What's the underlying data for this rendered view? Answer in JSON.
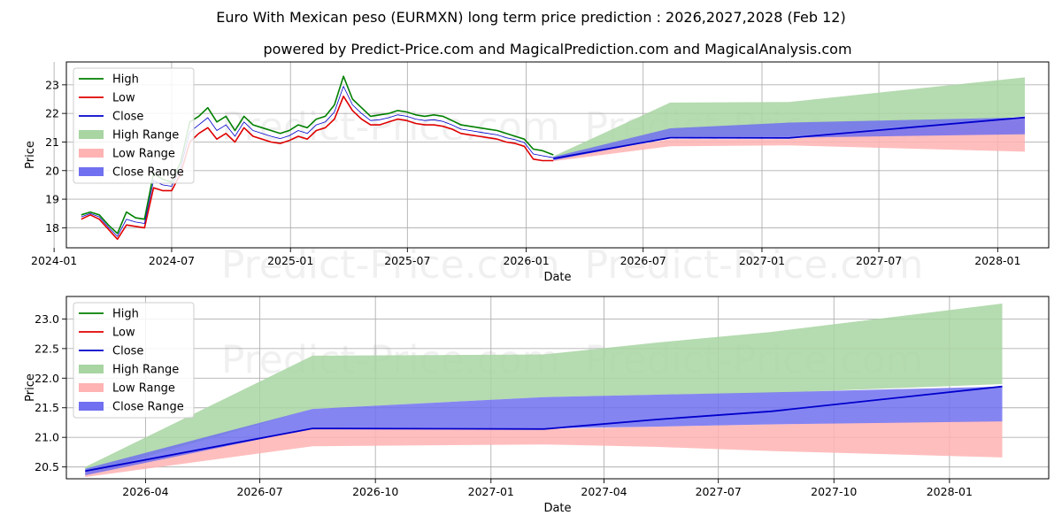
{
  "title": "Euro With Mexican peso (EURMXN) long term price prediction : 2026,2027,2028 (Feb 12)",
  "subtitle": "powered by Predict-Price.com and MagicalPrediction.com and MagicalAnalysis.com",
  "watermark": "Predict-Price.com",
  "colors": {
    "high": "#008000",
    "low": "#e00000",
    "close": "#0000cc",
    "high_range": "#a8d5a2",
    "low_range": "#ffb3b3",
    "close_range": "#7070f0",
    "grid": "#b0b0b0"
  },
  "legend": {
    "high": "High",
    "low": "Low",
    "close": "Close",
    "high_range": "High Range",
    "low_range": "Low Range",
    "close_range": "Close Range"
  },
  "chart_data": [
    {
      "type": "line",
      "name": "full-history",
      "xlabel": "Date",
      "ylabel": "Price",
      "xlim": [
        "2024-01-20",
        "2028-03-20"
      ],
      "ylim": [
        17.3,
        23.8
      ],
      "x_ticks": [
        "2024-01",
        "2024-07",
        "2025-01",
        "2025-07",
        "2026-01",
        "2026-07",
        "2027-01",
        "2027-07",
        "2028-01"
      ],
      "y_ticks": [
        18,
        19,
        20,
        21,
        22,
        23
      ],
      "history": {
        "dates": [
          "2024-02-12",
          "2024-02-26",
          "2024-03-11",
          "2024-03-25",
          "2024-04-08",
          "2024-04-22",
          "2024-05-06",
          "2024-05-20",
          "2024-06-03",
          "2024-06-17",
          "2024-07-01",
          "2024-07-15",
          "2024-07-29",
          "2024-08-12",
          "2024-08-26",
          "2024-09-09",
          "2024-09-23",
          "2024-10-07",
          "2024-10-21",
          "2024-11-04",
          "2024-11-18",
          "2024-12-02",
          "2024-12-16",
          "2024-12-30",
          "2025-01-13",
          "2025-01-27",
          "2025-02-10",
          "2025-02-24",
          "2025-03-10",
          "2025-03-24",
          "2025-04-07",
          "2025-04-21",
          "2025-05-05",
          "2025-05-19",
          "2025-06-02",
          "2025-06-16",
          "2025-06-30",
          "2025-07-14",
          "2025-07-28",
          "2025-08-11",
          "2025-08-25",
          "2025-09-08",
          "2025-09-22",
          "2025-10-06",
          "2025-10-20",
          "2025-11-03",
          "2025-11-17",
          "2025-12-01",
          "2025-12-15",
          "2025-12-29",
          "2026-01-12",
          "2026-01-26",
          "2026-02-12"
        ],
        "high": [
          18.45,
          18.55,
          18.45,
          18.1,
          17.8,
          18.55,
          18.35,
          18.3,
          19.9,
          19.7,
          19.6,
          20.3,
          21.7,
          21.9,
          22.2,
          21.7,
          21.9,
          21.4,
          21.9,
          21.6,
          21.5,
          21.4,
          21.3,
          21.4,
          21.6,
          21.5,
          21.8,
          21.9,
          22.3,
          23.3,
          22.5,
          22.2,
          21.9,
          21.95,
          22.0,
          22.1,
          22.05,
          21.95,
          21.9,
          21.95,
          21.9,
          21.75,
          21.6,
          21.55,
          21.5,
          21.45,
          21.4,
          21.3,
          21.2,
          21.1,
          20.75,
          20.7,
          20.55
        ],
        "low": [
          18.3,
          18.45,
          18.3,
          17.95,
          17.6,
          18.1,
          18.05,
          18.0,
          19.4,
          19.3,
          19.3,
          19.9,
          21.0,
          21.3,
          21.5,
          21.1,
          21.3,
          21.0,
          21.5,
          21.2,
          21.1,
          21.0,
          20.95,
          21.05,
          21.2,
          21.1,
          21.4,
          21.5,
          21.8,
          22.6,
          22.1,
          21.8,
          21.6,
          21.6,
          21.7,
          21.8,
          21.75,
          21.65,
          21.6,
          21.6,
          21.55,
          21.45,
          21.3,
          21.25,
          21.2,
          21.15,
          21.1,
          21.0,
          20.95,
          20.85,
          20.4,
          20.35,
          20.35
        ],
        "close": [
          18.38,
          18.5,
          18.38,
          18.02,
          17.7,
          18.3,
          18.2,
          18.15,
          19.65,
          19.5,
          19.45,
          20.1,
          21.35,
          21.6,
          21.85,
          21.4,
          21.6,
          21.2,
          21.7,
          21.4,
          21.3,
          21.2,
          21.12,
          21.22,
          21.4,
          21.3,
          21.6,
          21.7,
          22.05,
          22.95,
          22.3,
          22.0,
          21.75,
          21.78,
          21.85,
          21.95,
          21.9,
          21.8,
          21.75,
          21.78,
          21.72,
          21.6,
          21.45,
          21.4,
          21.35,
          21.3,
          21.25,
          21.15,
          21.08,
          20.98,
          20.58,
          20.52,
          20.45
        ]
      },
      "forecast": {
        "dates": [
          "2026-02-12",
          "2026-08-12",
          "2027-02-12",
          "2028-02-12"
        ],
        "close": [
          20.42,
          21.15,
          21.14,
          21.86
        ],
        "high_range": {
          "upper": [
            20.5,
            22.38,
            22.4,
            23.26
          ],
          "lower": [
            20.38,
            21.2,
            21.2,
            21.9
          ]
        },
        "low_range": {
          "upper": [
            20.42,
            21.1,
            21.1,
            21.85
          ],
          "lower": [
            20.33,
            20.85,
            20.88,
            20.66
          ]
        },
        "close_range": {
          "upper": [
            20.48,
            21.48,
            21.68,
            21.86
          ],
          "lower": [
            20.36,
            21.15,
            21.15,
            21.27
          ]
        }
      }
    },
    {
      "type": "line",
      "name": "forecast-zoom",
      "xlabel": "Date",
      "ylabel": "Price",
      "xlim": [
        "2026-01-28",
        "2028-03-20"
      ],
      "ylim": [
        20.3,
        23.38
      ],
      "x_ticks": [
        "2026-04",
        "2026-07",
        "2026-10",
        "2027-01",
        "2027-04",
        "2027-07",
        "2027-10",
        "2028-01"
      ],
      "y_ticks": [
        "20.5",
        "21.0",
        "21.5",
        "22.0",
        "22.5",
        "23.0"
      ],
      "forecast": {
        "dates": [
          "2026-02-12",
          "2026-08-12",
          "2027-02-12",
          "2027-05-12",
          "2027-08-12",
          "2028-02-12"
        ],
        "close": [
          20.43,
          21.15,
          21.14,
          21.3,
          21.44,
          21.86
        ],
        "high_range": {
          "upper": [
            20.5,
            22.38,
            22.4,
            22.6,
            22.78,
            23.26
          ],
          "lower": [
            20.38,
            21.48,
            21.68,
            21.72,
            21.75,
            21.9
          ]
        },
        "low_range": {
          "upper": [
            20.43,
            21.15,
            21.14,
            21.18,
            21.22,
            21.28
          ],
          "lower": [
            20.33,
            20.85,
            20.88,
            20.84,
            20.77,
            20.66
          ]
        },
        "close_range": {
          "upper": [
            20.47,
            21.48,
            21.68,
            21.72,
            21.76,
            21.86
          ],
          "lower": [
            20.36,
            21.15,
            21.15,
            21.18,
            21.22,
            21.27
          ]
        }
      }
    }
  ]
}
